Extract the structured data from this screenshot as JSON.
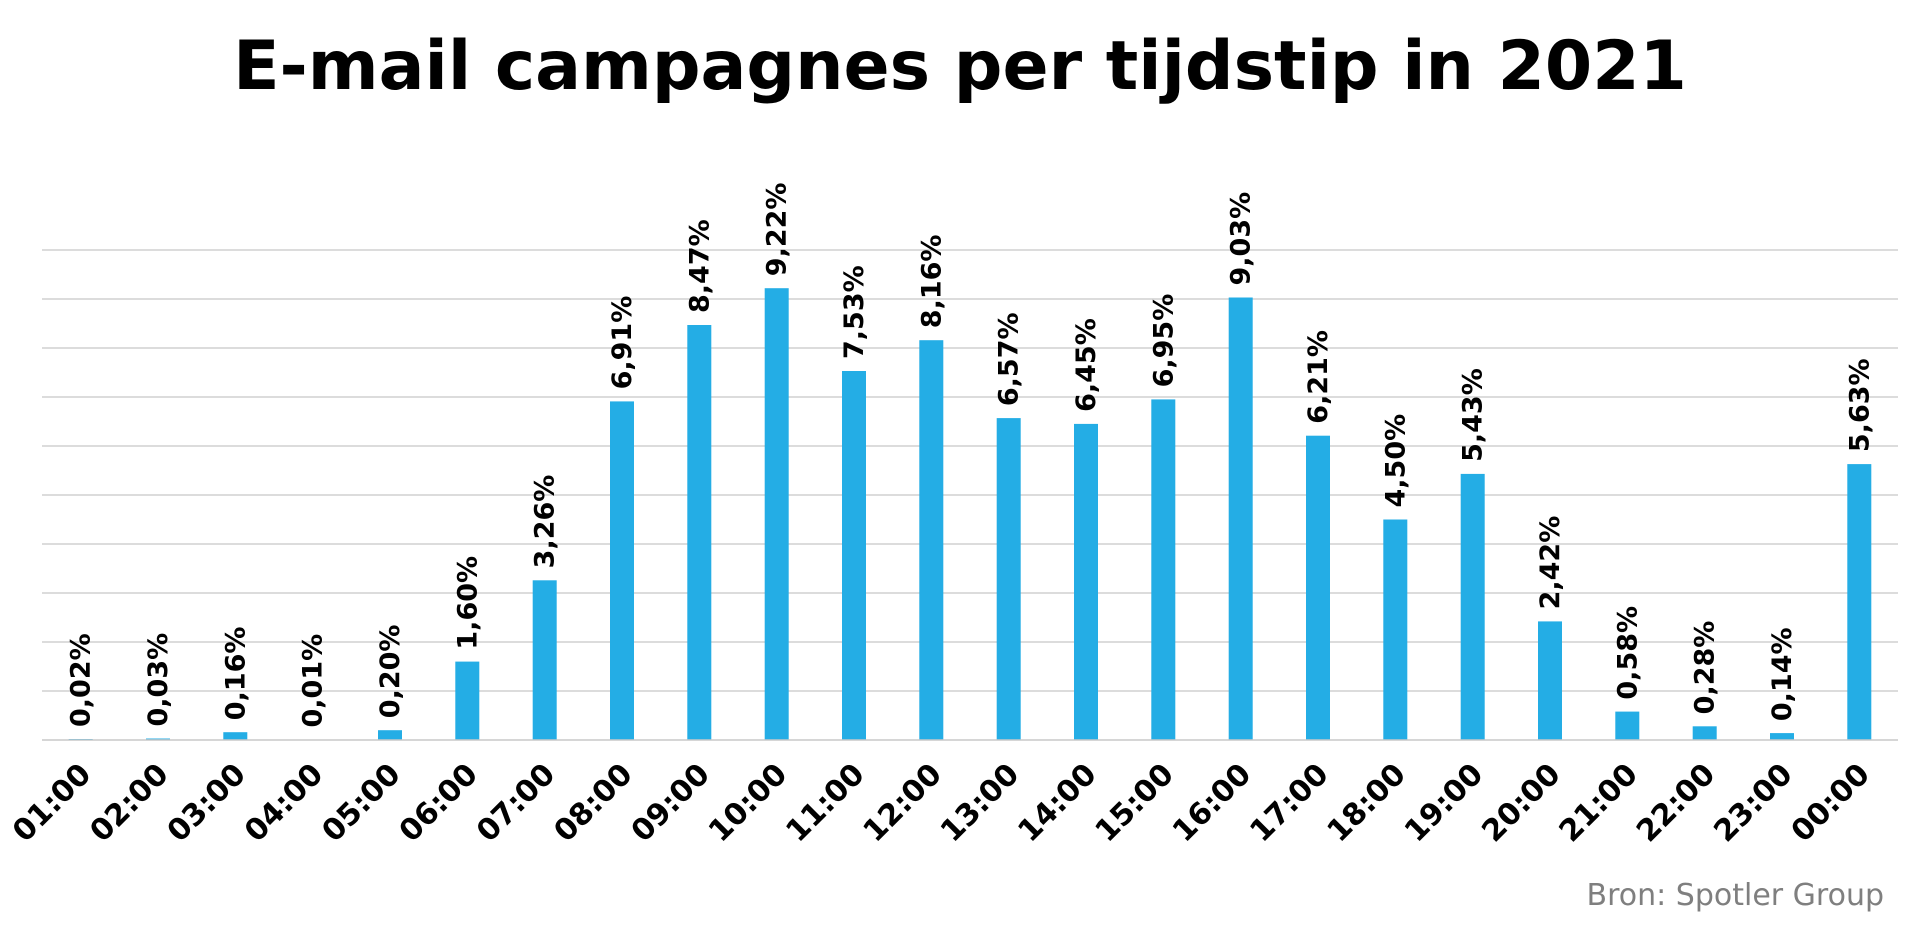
{
  "chart_data": {
    "type": "bar",
    "title": "E-mail campagnes per tijdstip in 2021",
    "source": "Bron: Spotler Group",
    "categories": [
      "01:00",
      "02:00",
      "03:00",
      "04:00",
      "05:00",
      "06:00",
      "07:00",
      "08:00",
      "09:00",
      "10:00",
      "11:00",
      "12:00",
      "13:00",
      "14:00",
      "15:00",
      "16:00",
      "17:00",
      "18:00",
      "19:00",
      "20:00",
      "21:00",
      "22:00",
      "23:00",
      "00:00"
    ],
    "values": [
      0.02,
      0.03,
      0.16,
      0.01,
      0.2,
      1.6,
      3.26,
      6.91,
      8.47,
      9.22,
      7.53,
      8.16,
      6.57,
      6.45,
      6.95,
      9.03,
      6.21,
      4.5,
      5.43,
      2.42,
      0.58,
      0.28,
      0.14,
      5.63
    ],
    "labels": [
      "0,02%",
      "0,03%",
      "0,16%",
      "0,01%",
      "0,20%",
      "1,60%",
      "3,26%",
      "6,91%",
      "8,47%",
      "9,22%",
      "7,53%",
      "8,16%",
      "6,57%",
      "6,45%",
      "6,95%",
      "9,03%",
      "6,21%",
      "4,50%",
      "5,43%",
      "2,42%",
      "0,58%",
      "0,28%",
      "0,14%",
      "5,63%"
    ],
    "ylim": [
      0,
      10
    ],
    "gridlines": [
      1,
      2,
      3,
      4,
      5,
      6,
      7,
      8,
      9,
      10
    ],
    "grid": true,
    "legend": "none",
    "bar_color": "#24ade5"
  }
}
